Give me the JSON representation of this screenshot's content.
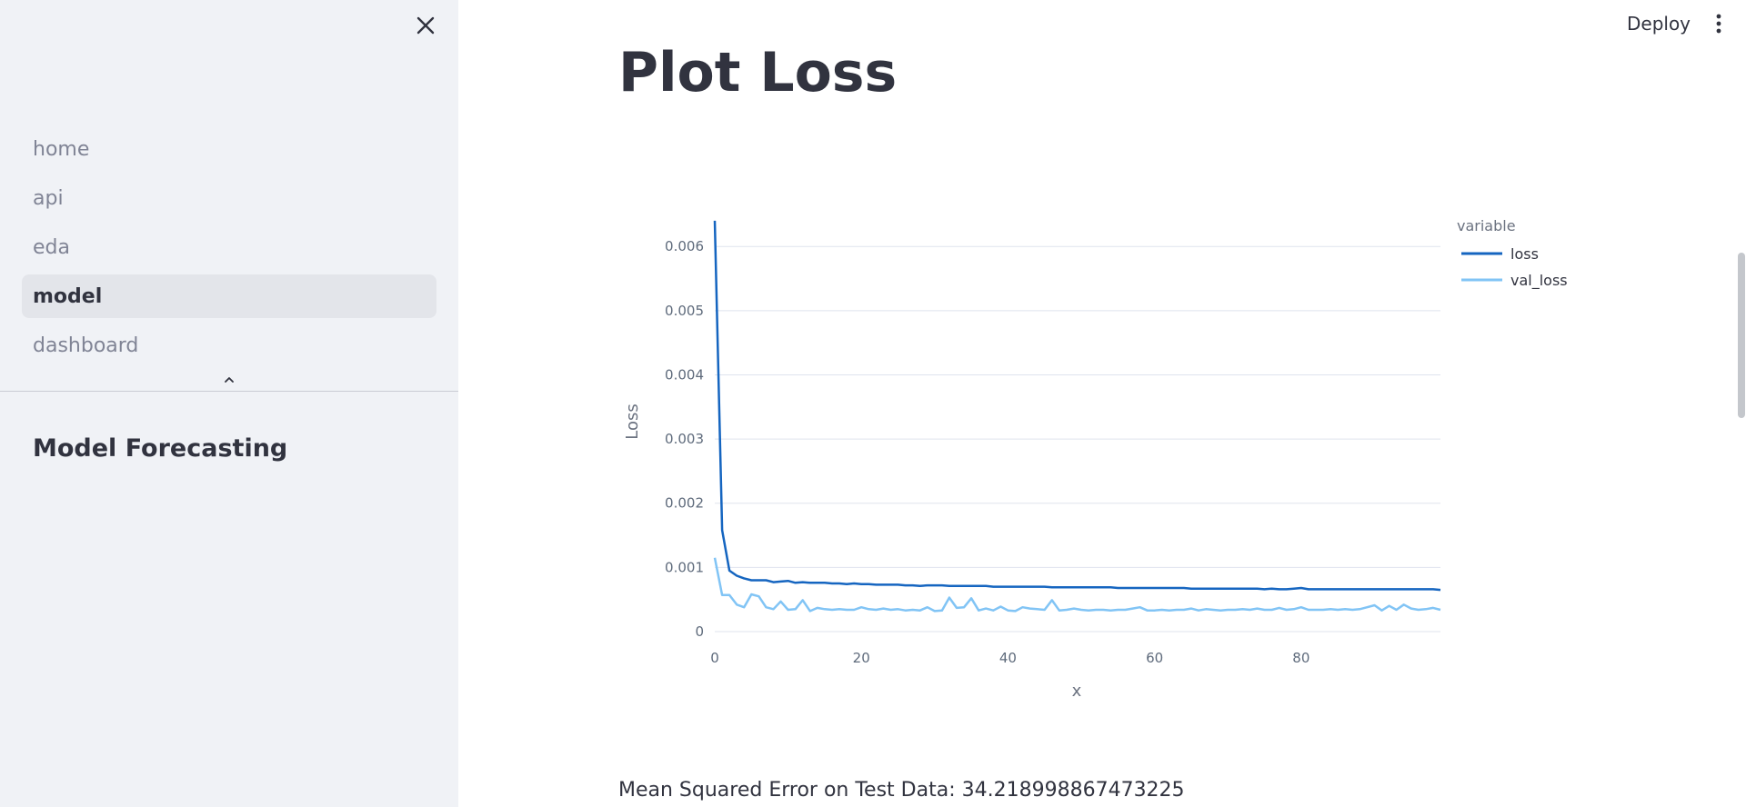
{
  "sidebar": {
    "close_icon": "close-icon",
    "nav": [
      {
        "label": "home",
        "active": false
      },
      {
        "label": "api",
        "active": false
      },
      {
        "label": "eda",
        "active": false
      },
      {
        "label": "model",
        "active": true
      },
      {
        "label": "dashboard",
        "active": false
      }
    ],
    "collapse_icon": "chevron-up-icon",
    "subtitle": "Model Forecasting"
  },
  "header": {
    "deploy_label": "Deploy",
    "menu_icon": "kebab-menu-icon"
  },
  "main": {
    "title": "Plot Loss",
    "mse_text": "Mean Squared Error on Test Data: 34.218998867473225"
  },
  "colors": {
    "loss": "#1565c0",
    "val_loss": "#81c4f5",
    "grid": "#dfe3ee",
    "sidebar_bg": "#f0f2f6"
  },
  "chart_data": {
    "type": "line",
    "title": "",
    "xlabel": "x",
    "ylabel": "Loss",
    "xlim": [
      0,
      99
    ],
    "ylim": [
      0,
      0.0063
    ],
    "x_ticks": [
      0,
      20,
      40,
      60,
      80
    ],
    "y_ticks": [
      0,
      0.001,
      0.002,
      0.003,
      0.004,
      0.005,
      0.006
    ],
    "y_tick_labels": [
      "0",
      "0.001",
      "0.002",
      "0.003",
      "0.004",
      "0.005",
      "0.006"
    ],
    "grid": true,
    "legend": {
      "title": "variable",
      "position": "top-right"
    },
    "series": [
      {
        "name": "loss",
        "values": [
          0.0064,
          0.00158,
          0.00095,
          0.00087,
          0.00083,
          0.0008,
          0.0008,
          0.0008,
          0.00077,
          0.00078,
          0.00079,
          0.00076,
          0.00077,
          0.00076,
          0.00076,
          0.00076,
          0.00075,
          0.00075,
          0.00074,
          0.00075,
          0.00074,
          0.00074,
          0.00073,
          0.00073,
          0.00073,
          0.00073,
          0.00072,
          0.00072,
          0.00071,
          0.00072,
          0.00072,
          0.00072,
          0.00071,
          0.00071,
          0.00071,
          0.00071,
          0.00071,
          0.00071,
          0.0007,
          0.0007,
          0.0007,
          0.0007,
          0.0007,
          0.0007,
          0.0007,
          0.0007,
          0.00069,
          0.00069,
          0.00069,
          0.00069,
          0.00069,
          0.00069,
          0.00069,
          0.00069,
          0.00069,
          0.00068,
          0.00068,
          0.00068,
          0.00068,
          0.00068,
          0.00068,
          0.00068,
          0.00068,
          0.00068,
          0.00068,
          0.00067,
          0.00067,
          0.00067,
          0.00067,
          0.00067,
          0.00067,
          0.00067,
          0.00067,
          0.00067,
          0.00067,
          0.00066,
          0.00067,
          0.00066,
          0.00066,
          0.00067,
          0.00068,
          0.00066,
          0.00066,
          0.00066,
          0.00066,
          0.00066,
          0.00066,
          0.00066,
          0.00066,
          0.00066,
          0.00066,
          0.00066,
          0.00066,
          0.00066,
          0.00066,
          0.00066,
          0.00066,
          0.00066,
          0.00066,
          0.00065
        ]
      },
      {
        "name": "val_loss",
        "values": [
          0.00115,
          0.00057,
          0.00057,
          0.00042,
          0.00038,
          0.00058,
          0.00055,
          0.00038,
          0.00035,
          0.00047,
          0.00034,
          0.00035,
          0.00049,
          0.00032,
          0.00037,
          0.00035,
          0.00034,
          0.00035,
          0.00034,
          0.00034,
          0.00038,
          0.00035,
          0.00034,
          0.00036,
          0.00034,
          0.00035,
          0.00033,
          0.00034,
          0.00033,
          0.00038,
          0.00032,
          0.00033,
          0.00053,
          0.00037,
          0.00038,
          0.00052,
          0.00033,
          0.00036,
          0.00033,
          0.00039,
          0.00033,
          0.00032,
          0.00038,
          0.00036,
          0.00035,
          0.00034,
          0.00049,
          0.00033,
          0.00034,
          0.00036,
          0.00034,
          0.00033,
          0.00034,
          0.00034,
          0.00033,
          0.00034,
          0.00034,
          0.00036,
          0.00038,
          0.00033,
          0.00033,
          0.00034,
          0.00033,
          0.00034,
          0.00034,
          0.00036,
          0.00033,
          0.00035,
          0.00034,
          0.00033,
          0.00034,
          0.00034,
          0.00035,
          0.00034,
          0.00036,
          0.00034,
          0.00034,
          0.00037,
          0.00034,
          0.00035,
          0.00038,
          0.00034,
          0.00034,
          0.00034,
          0.00035,
          0.00034,
          0.00035,
          0.00034,
          0.00035,
          0.00038,
          0.00041,
          0.00033,
          0.0004,
          0.00034,
          0.00042,
          0.00036,
          0.00034,
          0.00035,
          0.00037,
          0.00034
        ]
      }
    ]
  }
}
